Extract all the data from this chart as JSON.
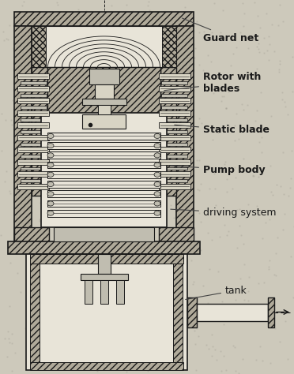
{
  "bg_color": "#cdc9bb",
  "line_color": "#1a1a1a",
  "label_color": "#1a1a1a",
  "labels": {
    "guard_net": "Guard net",
    "rotor_blades": "Rotor with\nblades",
    "static_blade": "Static blade",
    "pump_body": "Pump body",
    "driving_system": "driving system",
    "tank": "tank"
  },
  "figsize": [
    3.72,
    4.74
  ],
  "dpi": 100
}
